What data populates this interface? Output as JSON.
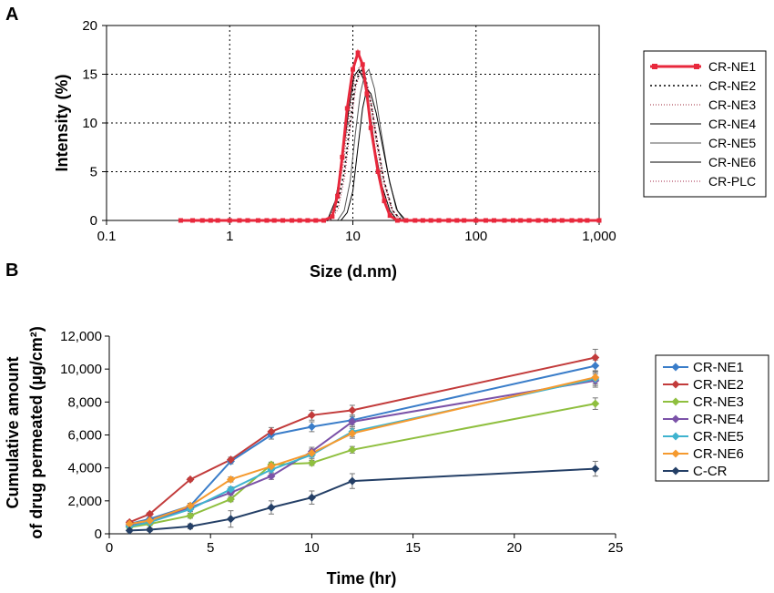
{
  "chart_data": [
    {
      "panel_label": "A",
      "type": "line",
      "xscale": "log",
      "xlabel": "Size (d.nm)",
      "ylabel": "Intensity (%)",
      "xlim": [
        0.1,
        1000
      ],
      "ylim": [
        0,
        20
      ],
      "x_ticks": [
        0.1,
        1,
        10,
        100,
        1000
      ],
      "x_tick_labels": [
        "0.1",
        "1",
        "10",
        "100",
        "1,000"
      ],
      "y_ticks": [
        0,
        5,
        10,
        15,
        20
      ],
      "y_tick_labels": [
        "0",
        "5",
        "10",
        "15",
        "20"
      ],
      "grid": "dotted",
      "legend": "right",
      "series": [
        {
          "name": "CR-NE1",
          "color": "#e8283c",
          "style": "solid-square-markers",
          "x": [
            0.4,
            0.5,
            0.6,
            0.7,
            0.8,
            1,
            1.2,
            1.4,
            1.7,
            2,
            2.3,
            2.7,
            3.2,
            3.7,
            4.3,
            5,
            5.8,
            6.8,
            7.5,
            8.2,
            9,
            10,
            11,
            12,
            13,
            14,
            16,
            18,
            20,
            23,
            27,
            32,
            37,
            43,
            50,
            60,
            70,
            80,
            100,
            120,
            140,
            170,
            200,
            230,
            270,
            320,
            370,
            430,
            500,
            600,
            700,
            800,
            1000
          ],
          "y": [
            0,
            0,
            0,
            0,
            0,
            0,
            0,
            0,
            0,
            0,
            0,
            0,
            0,
            0,
            0,
            0,
            0,
            0.4,
            2.5,
            6.5,
            11.5,
            15.5,
            17.2,
            16,
            13,
            9.5,
            5,
            2,
            0.5,
            0,
            0,
            0,
            0,
            0,
            0,
            0,
            0,
            0,
            0,
            0,
            0,
            0,
            0,
            0,
            0,
            0,
            0,
            0,
            0,
            0,
            0,
            0,
            0
          ]
        },
        {
          "name": "CR-NE2",
          "color": "#000000",
          "style": "dotted",
          "x": [
            0.4,
            6.5,
            7.5,
            8.5,
            9.5,
            10.5,
            11.5,
            12.5,
            14,
            16,
            18,
            21,
            25,
            1000
          ],
          "y": [
            0,
            0,
            1.5,
            5,
            10,
            14,
            15.5,
            15,
            12,
            7.5,
            4,
            1,
            0,
            0
          ]
        },
        {
          "name": "CR-NE3",
          "color": "#9b2335",
          "style": "thin-dotted",
          "x": [
            0.4,
            6.3,
            7.3,
            8.3,
            9.3,
            10.3,
            11.3,
            12.3,
            13.8,
            15.5,
            17.5,
            20.5,
            24,
            1000
          ],
          "y": [
            0,
            0,
            1.8,
            5.5,
            10.5,
            14.5,
            15.8,
            15.2,
            12.5,
            8,
            4.2,
            1.2,
            0,
            0
          ]
        },
        {
          "name": "CR-NE4",
          "color": "#000000",
          "style": "solid",
          "x": [
            0.4,
            6.2,
            7.2,
            8.2,
            9.2,
            10.2,
            11.2,
            12.2,
            13.6,
            15.3,
            17.3,
            20,
            23,
            1000
          ],
          "y": [
            0,
            0,
            2,
            6,
            11,
            14.8,
            15.5,
            14.5,
            11.5,
            7,
            3.5,
            1,
            0,
            0
          ]
        },
        {
          "name": "CR-NE5",
          "color": "#555555",
          "style": "solid",
          "x": [
            0.4,
            7.5,
            8.5,
            9.5,
            10.5,
            11.5,
            12.5,
            13.5,
            15,
            17,
            19.5,
            22.5,
            26,
            1000
          ],
          "y": [
            0,
            0,
            1,
            4,
            9,
            13,
            15,
            15.5,
            13.5,
            9,
            4.5,
            1.2,
            0,
            0
          ]
        },
        {
          "name": "CR-NE6",
          "color": "#000000",
          "style": "solid",
          "x": [
            0.4,
            8,
            9,
            10,
            11,
            12,
            13,
            14,
            15.5,
            17.5,
            20,
            23,
            27,
            1000
          ],
          "y": [
            0,
            0,
            0.8,
            3,
            7.5,
            11.5,
            13.5,
            13,
            11,
            7.5,
            3.8,
            1,
            0,
            0
          ]
        },
        {
          "name": "CR-PLC",
          "color": "#a02040",
          "style": "thin-dotted",
          "x": [
            0.4,
            6.6,
            7.6,
            8.6,
            9.6,
            10.6,
            11.6,
            12.6,
            14.2,
            16,
            18,
            21,
            25,
            1000
          ],
          "y": [
            0,
            0,
            1.2,
            4.5,
            9.8,
            13.8,
            15.2,
            14.8,
            12,
            7.8,
            4,
            1,
            0,
            0
          ]
        }
      ]
    },
    {
      "panel_label": "B",
      "type": "line",
      "xlabel": "Time (hr)",
      "ylabel_line1": "Cumulative amount",
      "ylabel_line2": "of drug permeated (µg/cm²)",
      "xlim": [
        0,
        25
      ],
      "ylim": [
        0,
        12000
      ],
      "x_ticks": [
        0,
        5,
        10,
        15,
        20,
        25
      ],
      "x_tick_labels": [
        "0",
        "5",
        "10",
        "15",
        "20",
        "25"
      ],
      "y_ticks": [
        0,
        2000,
        4000,
        6000,
        8000,
        10000,
        12000
      ],
      "y_tick_labels": [
        "0",
        "2,000",
        "4,000",
        "6,000",
        "8,000",
        "10,000",
        "12,000"
      ],
      "legend": "right",
      "x": [
        1,
        2,
        4,
        6,
        8,
        10,
        12,
        24
      ],
      "series": [
        {
          "name": "CR-NE1",
          "color": "#3a7dc9",
          "values": [
            600,
            900,
            1700,
            4400,
            6000,
            6500,
            6900,
            10200
          ],
          "errors": [
            100,
            100,
            150,
            150,
            250,
            300,
            300,
            350
          ]
        },
        {
          "name": "CR-NE2",
          "color": "#c23b3b",
          "values": [
            700,
            1200,
            3300,
            4500,
            6200,
            7200,
            7500,
            10700
          ],
          "errors": [
            100,
            100,
            100,
            150,
            250,
            300,
            300,
            500
          ]
        },
        {
          "name": "CR-NE3",
          "color": "#8fbf3f",
          "values": [
            400,
            600,
            1100,
            2100,
            4200,
            4300,
            5100,
            7900
          ],
          "errors": [
            100,
            100,
            150,
            150,
            150,
            150,
            200,
            350
          ]
        },
        {
          "name": "CR-NE4",
          "color": "#7b52a8",
          "values": [
            500,
            700,
            1600,
            2500,
            3500,
            5000,
            6800,
            9300
          ],
          "errors": [
            100,
            100,
            150,
            150,
            200,
            250,
            300,
            400
          ]
        },
        {
          "name": "CR-NE5",
          "color": "#3fb3cf",
          "values": [
            450,
            700,
            1500,
            2700,
            3900,
            4800,
            6200,
            9400
          ],
          "errors": [
            100,
            100,
            150,
            150,
            200,
            250,
            300,
            400
          ]
        },
        {
          "name": "CR-NE6",
          "color": "#f59a2f",
          "values": [
            600,
            800,
            1700,
            3300,
            4100,
            4900,
            6100,
            9500
          ],
          "errors": [
            100,
            100,
            150,
            150,
            200,
            250,
            300,
            400
          ]
        },
        {
          "name": "C-CR",
          "color": "#243f66",
          "values": [
            200,
            250,
            450,
            900,
            1600,
            2200,
            3200,
            3950
          ],
          "errors": [
            100,
            100,
            150,
            500,
            400,
            400,
            450,
            450
          ]
        }
      ]
    }
  ]
}
